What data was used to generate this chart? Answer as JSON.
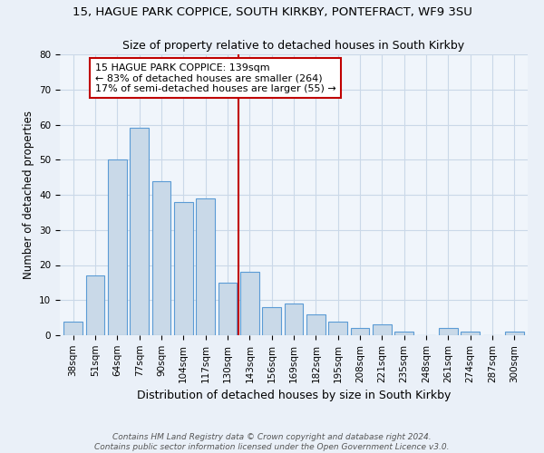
{
  "title": "15, HAGUE PARK COPPICE, SOUTH KIRKBY, PONTEFRACT, WF9 3SU",
  "subtitle": "Size of property relative to detached houses in South Kirkby",
  "xlabel": "Distribution of detached houses by size in South Kirkby",
  "ylabel": "Number of detached properties",
  "categories": [
    "38sqm",
    "51sqm",
    "64sqm",
    "77sqm",
    "90sqm",
    "104sqm",
    "117sqm",
    "130sqm",
    "143sqm",
    "156sqm",
    "169sqm",
    "182sqm",
    "195sqm",
    "208sqm",
    "221sqm",
    "235sqm",
    "248sqm",
    "261sqm",
    "274sqm",
    "287sqm",
    "300sqm"
  ],
  "values": [
    4,
    17,
    50,
    59,
    44,
    38,
    39,
    15,
    18,
    8,
    9,
    6,
    4,
    2,
    3,
    1,
    0,
    2,
    1,
    0,
    1
  ],
  "bar_color": "#c9d9e8",
  "bar_edge_color": "#5b9bd5",
  "vline_x": 7.5,
  "vline_color": "#c00000",
  "annotation_text": "15 HAGUE PARK COPPICE: 139sqm\n← 83% of detached houses are smaller (264)\n17% of semi-detached houses are larger (55) →",
  "annotation_box_color": "#ffffff",
  "annotation_box_edge_color": "#c00000",
  "ylim": [
    0,
    80
  ],
  "yticks": [
    0,
    10,
    20,
    30,
    40,
    50,
    60,
    70,
    80
  ],
  "footer": "Contains HM Land Registry data © Crown copyright and database right 2024.\nContains public sector information licensed under the Open Government Licence v3.0.",
  "bg_color": "#eaf0f8",
  "plot_bg_color": "#f0f5fb",
  "grid_color": "#cad8e8",
  "title_fontsize": 9.5,
  "ylabel_fontsize": 8.5,
  "xlabel_fontsize": 9,
  "tick_fontsize": 7.5,
  "annot_fontsize": 8,
  "footer_fontsize": 6.5
}
